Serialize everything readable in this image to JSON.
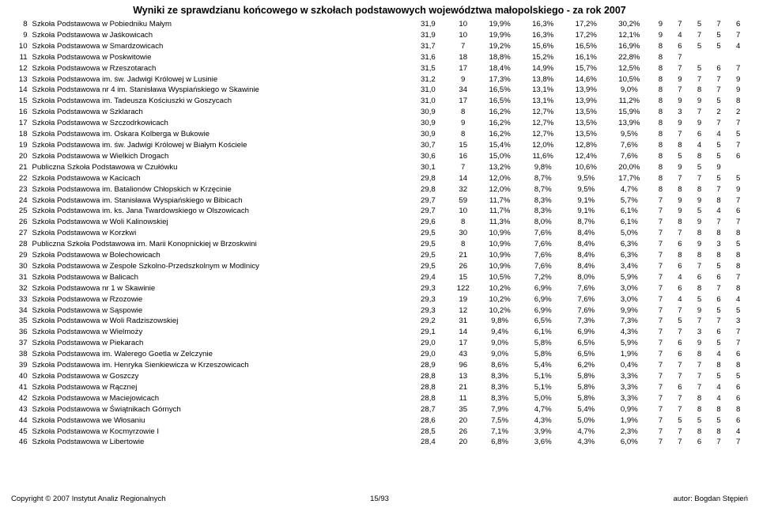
{
  "title": "Wyniki ze sprawdzianu końcowego w szkołach podstawowych województwa małopolskiego - za rok 2007",
  "footer": {
    "copyright": "Copyright © 2007 Instytut Analiz Regionalnych",
    "page": "15/93",
    "author": "autor: Bogdan Stępień"
  },
  "table": {
    "columns": [
      "idx",
      "name",
      "val",
      "n",
      "p1",
      "p2",
      "p3",
      "p4",
      "s1",
      "s2",
      "s3",
      "s4",
      "s5"
    ],
    "rows": [
      [
        8,
        "Szkoła Podstawowa w Pobiedniku Małym",
        "31,9",
        "10",
        "19,9%",
        "16,3%",
        "17,2%",
        "30,2%",
        "9",
        "7",
        "5",
        "7",
        "6"
      ],
      [
        9,
        "Szkoła Podstawowa w Jaśkowicach",
        "31,9",
        "10",
        "19,9%",
        "16,3%",
        "17,2%",
        "12,1%",
        "9",
        "4",
        "7",
        "5",
        "7"
      ],
      [
        10,
        "Szkoła Podstawowa w Smardzowicach",
        "31,7",
        "7",
        "19,2%",
        "15,6%",
        "16,5%",
        "16,9%",
        "8",
        "6",
        "5",
        "5",
        "4"
      ],
      [
        11,
        "Szkoła Podstawowa w Poskwitowie",
        "31,6",
        "18",
        "18,8%",
        "15,2%",
        "16,1%",
        "22,8%",
        "8",
        "7",
        "",
        "",
        ""
      ],
      [
        12,
        "Szkoła Podstawowa w Rzeszotarach",
        "31,5",
        "17",
        "18,4%",
        "14,9%",
        "15,7%",
        "12,5%",
        "8",
        "7",
        "5",
        "6",
        "7"
      ],
      [
        13,
        "Szkoła Podstawowa im. św. Jadwigi Królowej w Lusinie",
        "31,2",
        "9",
        "17,3%",
        "13,8%",
        "14,6%",
        "10,5%",
        "8",
        "9",
        "7",
        "7",
        "9"
      ],
      [
        14,
        "Szkoła Podstawowa nr 4 im. Stanisława Wyspiańskiego w Skawinie",
        "31,0",
        "34",
        "16,5%",
        "13,1%",
        "13,9%",
        "9,0%",
        "8",
        "7",
        "8",
        "7",
        "9"
      ],
      [
        15,
        "Szkoła Podstawowa im. Tadeusza Kościuszki w Goszycach",
        "31,0",
        "17",
        "16,5%",
        "13,1%",
        "13,9%",
        "11,2%",
        "8",
        "9",
        "9",
        "5",
        "8"
      ],
      [
        16,
        "Szkoła Podstawowa w Szklarach",
        "30,9",
        "8",
        "16,2%",
        "12,7%",
        "13,5%",
        "15,9%",
        "8",
        "3",
        "7",
        "2",
        "2"
      ],
      [
        17,
        "Szkoła Podstawowa w Szczodrkowicach",
        "30,9",
        "9",
        "16,2%",
        "12,7%",
        "13,5%",
        "13,9%",
        "8",
        "9",
        "9",
        "7",
        "7"
      ],
      [
        18,
        "Szkoła Podstawowa im. Oskara Kolberga w Bukowie",
        "30,9",
        "8",
        "16,2%",
        "12,7%",
        "13,5%",
        "9,5%",
        "8",
        "7",
        "6",
        "4",
        "5"
      ],
      [
        19,
        "Szkoła Podstawowa im. św. Jadwigi Królowej w Białym Kościele",
        "30,7",
        "15",
        "15,4%",
        "12,0%",
        "12,8%",
        "7,6%",
        "8",
        "8",
        "4",
        "5",
        "7"
      ],
      [
        20,
        "Szkoła Podstawowa w Wielkich Drogach",
        "30,6",
        "16",
        "15,0%",
        "11,6%",
        "12,4%",
        "7,6%",
        "8",
        "5",
        "8",
        "5",
        "6"
      ],
      [
        21,
        "Publiczna Szkoła Podstawowa w Czułówku",
        "30,1",
        "7",
        "13,2%",
        "9,8%",
        "10,6%",
        "20,0%",
        "8",
        "9",
        "5",
        "9",
        ""
      ],
      [
        22,
        "Szkoła Podstawowa w Kacicach",
        "29,8",
        "14",
        "12,0%",
        "8,7%",
        "9,5%",
        "17,7%",
        "8",
        "7",
        "7",
        "5",
        "5"
      ],
      [
        23,
        "Szkoła Podstawowa im. Batalionów Chłopskich w Krzęcinie",
        "29,8",
        "32",
        "12,0%",
        "8,7%",
        "9,5%",
        "4,7%",
        "8",
        "8",
        "8",
        "7",
        "9"
      ],
      [
        24,
        "Szkoła Podstawowa im. Stanisława Wyspiańskiego w Bibicach",
        "29,7",
        "59",
        "11,7%",
        "8,3%",
        "9,1%",
        "5,7%",
        "7",
        "9",
        "9",
        "8",
        "7"
      ],
      [
        25,
        "Szkoła Podstawowa im. ks. Jana Twardowskiego w Olszowicach",
        "29,7",
        "10",
        "11,7%",
        "8,3%",
        "9,1%",
        "6,1%",
        "7",
        "9",
        "5",
        "4",
        "6"
      ],
      [
        26,
        "Szkoła Podstawowa w Woli Kalinowskiej",
        "29,6",
        "8",
        "11,3%",
        "8,0%",
        "8,7%",
        "6,1%",
        "7",
        "8",
        "9",
        "7",
        "7"
      ],
      [
        27,
        "Szkoła Podstawowa w Korzkwi",
        "29,5",
        "30",
        "10,9%",
        "7,6%",
        "8,4%",
        "5,0%",
        "7",
        "7",
        "8",
        "8",
        "8"
      ],
      [
        28,
        "Publiczna Szkoła Podstawowa im. Marii Konopnickiej w Brzoskwini",
        "29,5",
        "8",
        "10,9%",
        "7,6%",
        "8,4%",
        "6,3%",
        "7",
        "6",
        "9",
        "3",
        "5"
      ],
      [
        29,
        "Szkoła Podstawowa w Bolechowicach",
        "29,5",
        "21",
        "10,9%",
        "7,6%",
        "8,4%",
        "6,3%",
        "7",
        "8",
        "8",
        "8",
        "8"
      ],
      [
        30,
        "Szkoła Podstawowa w Zespole Szkolno-Przedszkolnym w Modlnicy",
        "29,5",
        "26",
        "10,9%",
        "7,6%",
        "8,4%",
        "3,4%",
        "7",
        "6",
        "7",
        "5",
        "8"
      ],
      [
        31,
        "Szkoła Podstawowa w Balicach",
        "29,4",
        "15",
        "10,5%",
        "7,2%",
        "8,0%",
        "5,9%",
        "7",
        "4",
        "6",
        "6",
        "7"
      ],
      [
        32,
        "Szkoła Podstawowa nr 1 w Skawinie",
        "29,3",
        "122",
        "10,2%",
        "6,9%",
        "7,6%",
        "3,0%",
        "7",
        "6",
        "8",
        "7",
        "8"
      ],
      [
        33,
        "Szkoła Podstawowa w Rzozowie",
        "29,3",
        "19",
        "10,2%",
        "6,9%",
        "7,6%",
        "3,0%",
        "7",
        "4",
        "5",
        "6",
        "4"
      ],
      [
        34,
        "Szkoła Podstawowa w Sąspowie",
        "29,3",
        "12",
        "10,2%",
        "6,9%",
        "7,6%",
        "9,9%",
        "7",
        "7",
        "9",
        "5",
        "5"
      ],
      [
        35,
        "Szkoła Podstawowa w Woli Radziszowskiej",
        "29,2",
        "31",
        "9,8%",
        "6,5%",
        "7,3%",
        "7,3%",
        "7",
        "5",
        "7",
        "7",
        "3"
      ],
      [
        36,
        "Szkoła Podstawowa w Wielmoży",
        "29,1",
        "14",
        "9,4%",
        "6,1%",
        "6,9%",
        "4,3%",
        "7",
        "7",
        "3",
        "6",
        "7"
      ],
      [
        37,
        "Szkoła Podstawowa w Piekarach",
        "29,0",
        "17",
        "9,0%",
        "5,8%",
        "6,5%",
        "5,9%",
        "7",
        "6",
        "9",
        "5",
        "7"
      ],
      [
        38,
        "Szkoła Podstawowa im. Walerego Goetla w Zelczynie",
        "29,0",
        "43",
        "9,0%",
        "5,8%",
        "6,5%",
        "1,9%",
        "7",
        "6",
        "8",
        "4",
        "6"
      ],
      [
        39,
        "Szkoła Podstawowa im. Henryka Sienkiewicza w Krzeszowicach",
        "28,9",
        "96",
        "8,6%",
        "5,4%",
        "6,2%",
        "0,4%",
        "7",
        "7",
        "7",
        "8",
        "8"
      ],
      [
        40,
        "Szkoła Podstawowa w Goszczy",
        "28,8",
        "13",
        "8,3%",
        "5,1%",
        "5,8%",
        "3,3%",
        "7",
        "7",
        "7",
        "5",
        "5"
      ],
      [
        41,
        "Szkoła Podstawowa w Rącznej",
        "28,8",
        "21",
        "8,3%",
        "5,1%",
        "5,8%",
        "3,3%",
        "7",
        "6",
        "7",
        "4",
        "6"
      ],
      [
        42,
        "Szkoła Podstawowa w Maciejowicach",
        "28,8",
        "11",
        "8,3%",
        "5,0%",
        "5,8%",
        "3,3%",
        "7",
        "7",
        "8",
        "4",
        "6"
      ],
      [
        43,
        "Szkoła Podstawowa w Świątnikach Górnych",
        "28,7",
        "35",
        "7,9%",
        "4,7%",
        "5,4%",
        "0,9%",
        "7",
        "7",
        "8",
        "8",
        "8"
      ],
      [
        44,
        "Szkoła Podstawowa we Włosaniu",
        "28,6",
        "20",
        "7,5%",
        "4,3%",
        "5,0%",
        "1,9%",
        "7",
        "5",
        "5",
        "5",
        "6"
      ],
      [
        45,
        "Szkoła Podstawowa w Kocmyrzowie I",
        "28,5",
        "26",
        "7,1%",
        "3,9%",
        "4,7%",
        "2,3%",
        "7",
        "7",
        "8",
        "8",
        "4"
      ],
      [
        46,
        "Szkoła Podstawowa w Libertowie",
        "28,4",
        "20",
        "6,8%",
        "3,6%",
        "4,3%",
        "6,0%",
        "7",
        "7",
        "6",
        "7",
        "7"
      ]
    ]
  }
}
